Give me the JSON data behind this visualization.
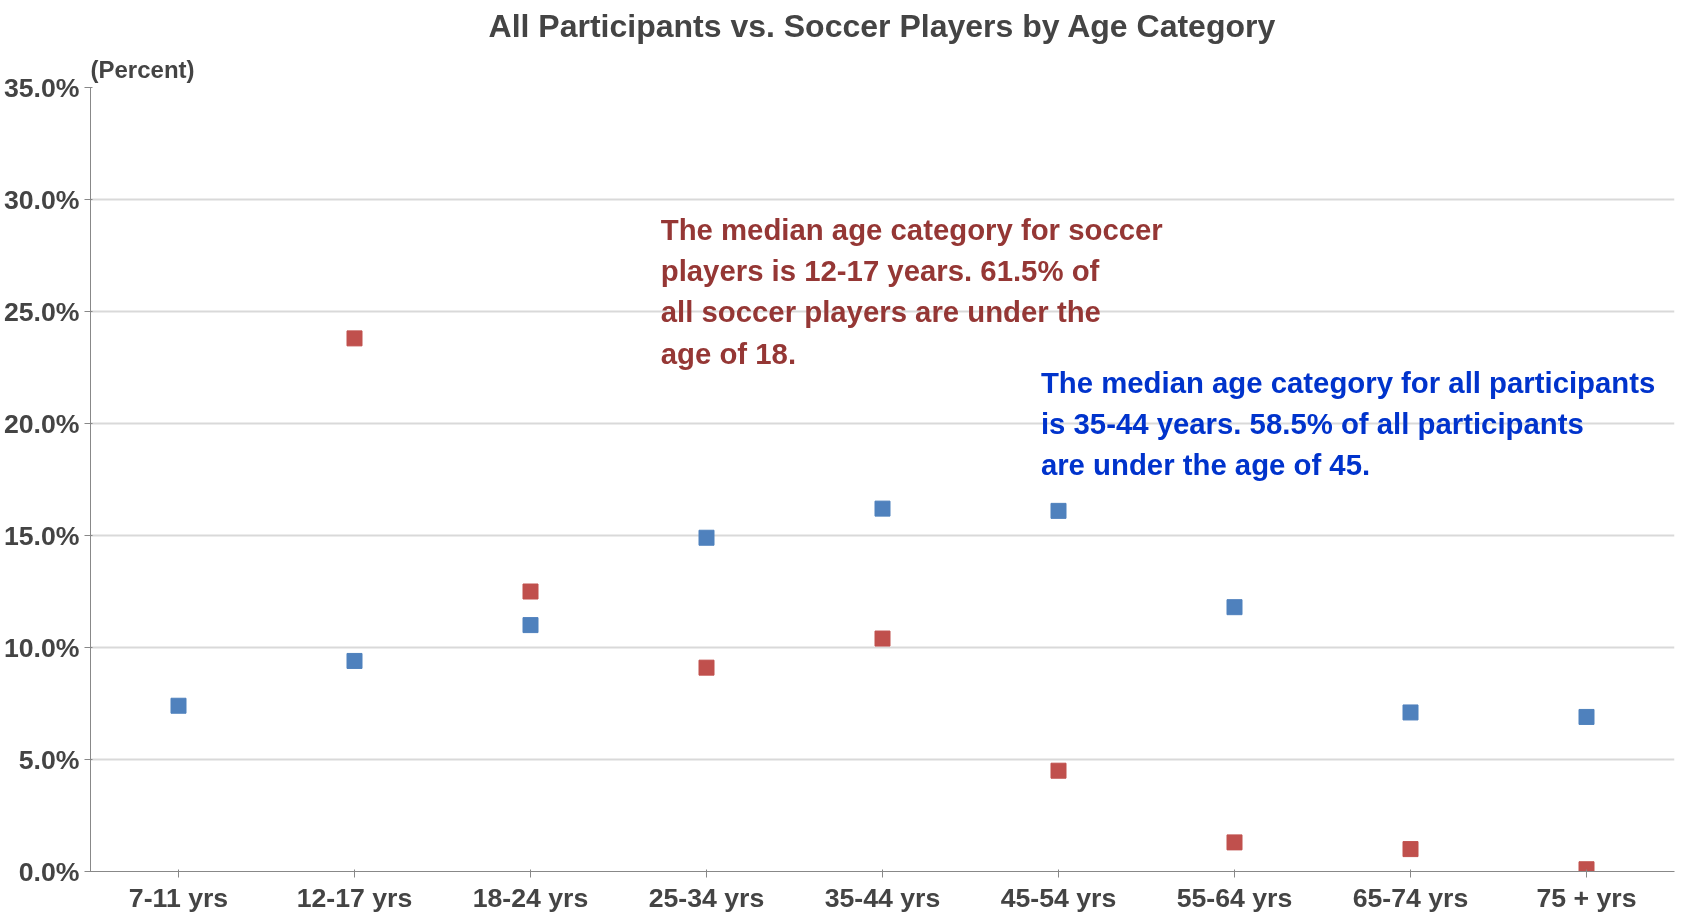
{
  "chart_data": {
    "type": "scatter",
    "title": "All Participants vs. Soccer Players by Age Category",
    "ylabel": "(Percent)",
    "categories": [
      "7-11 yrs",
      "12-17 yrs",
      "18-24 yrs",
      "25-34 yrs",
      "35-44 yrs",
      "45-54 yrs",
      "55-64 yrs",
      "65-74 yrs",
      "75 + yrs"
    ],
    "series": [
      {
        "color": "#4f81bd",
        "values": [
          7.4,
          9.4,
          11.0,
          14.9,
          16.2,
          16.1,
          11.8,
          7.1,
          6.9
        ]
      },
      {
        "color": "#c0504d",
        "values": [
          null,
          23.8,
          12.5,
          9.1,
          10.4,
          4.5,
          1.3,
          1.0,
          0.1
        ]
      }
    ],
    "ylim": [
      0,
      35
    ],
    "yticks": [
      {
        "value": 0,
        "label": "0.0%"
      },
      {
        "value": 5,
        "label": "5.0%"
      },
      {
        "value": 10,
        "label": "10.0%"
      },
      {
        "value": 15,
        "label": "15.0%"
      },
      {
        "value": 20,
        "label": "20.0%"
      },
      {
        "value": 25,
        "label": "25.0%"
      },
      {
        "value": 30,
        "label": "30.0%"
      },
      {
        "value": 35,
        "label": "35.0%"
      }
    ],
    "grid": "y",
    "marker": "square",
    "annotations": [
      "The median age category for soccer players is 12-17 years. 61.5% of all soccer players are under the age of 18.",
      "The median age category for all participants is 35-44 years. 58.5% of all participants are under the age of 45."
    ]
  }
}
